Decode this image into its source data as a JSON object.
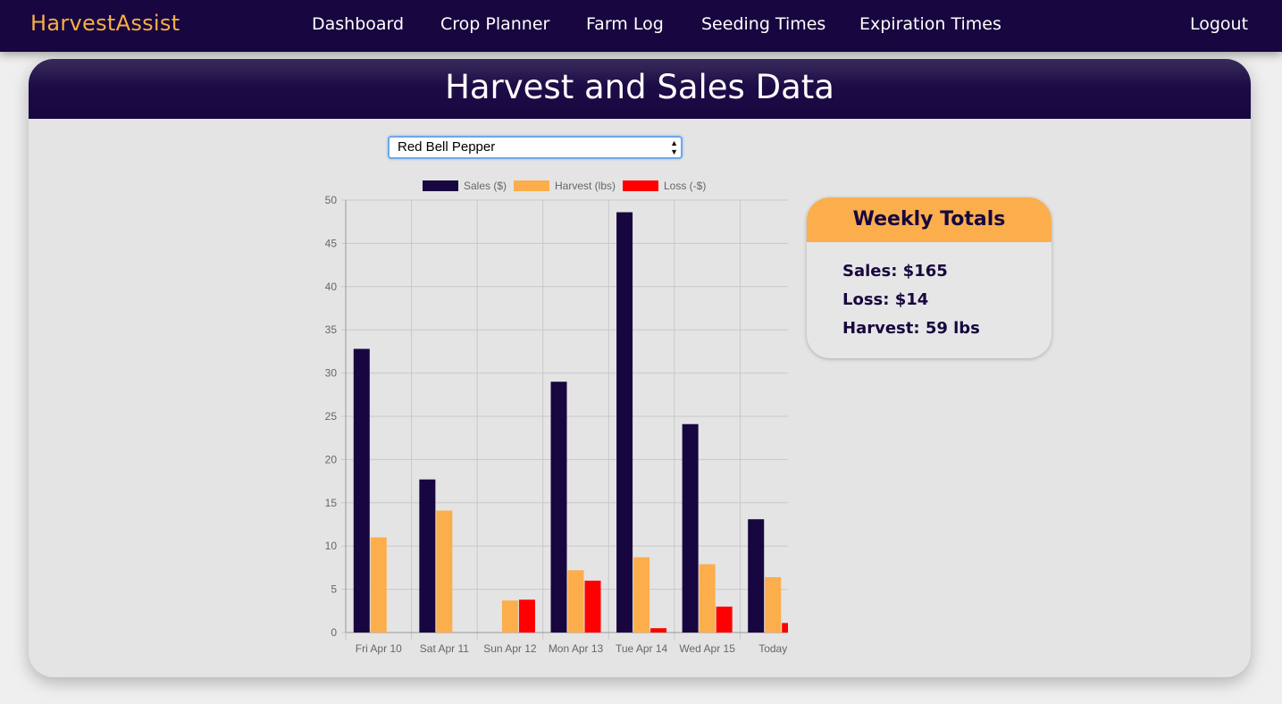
{
  "nav": {
    "brand": "HarvestAssist",
    "links": [
      "Dashboard",
      "Crop Planner",
      "Farm Log",
      "Seeding Times",
      "Expiration Times"
    ],
    "logout": "Logout"
  },
  "page": {
    "title": "Harvest and Sales Data",
    "crop_select": {
      "selected": "Red Bell Pepper"
    }
  },
  "totals": {
    "title": "Weekly Totals",
    "sales": "Sales: $165",
    "loss": "Loss: $14",
    "harvest": "Harvest: 59 lbs"
  },
  "colors": {
    "navy": "#17063f",
    "orange": "#fbae4b",
    "red": "#ff0000"
  },
  "chart_data": {
    "type": "bar",
    "categories": [
      "Fri Apr 10",
      "Sat Apr 11",
      "Sun Apr 12",
      "Mon Apr 13",
      "Tue Apr 14",
      "Wed Apr 15",
      "Today"
    ],
    "series": [
      {
        "name": "Sales ($)",
        "color": "#17063f",
        "values": [
          32.8,
          17.7,
          0,
          29,
          48.6,
          24.1,
          13.1
        ]
      },
      {
        "name": "Harvest (lbs)",
        "color": "#fbae4b",
        "values": [
          11,
          14.1,
          3.7,
          7.2,
          8.7,
          7.9,
          6.4
        ]
      },
      {
        "name": "Loss (-$)",
        "color": "#ff0000",
        "values": [
          0,
          0,
          3.8,
          6,
          0.5,
          3,
          1.1
        ]
      }
    ],
    "ylim": [
      0,
      50
    ],
    "yticks": [
      0,
      5,
      10,
      15,
      20,
      25,
      30,
      35,
      40,
      45,
      50
    ],
    "grid": true,
    "legend": "top"
  }
}
